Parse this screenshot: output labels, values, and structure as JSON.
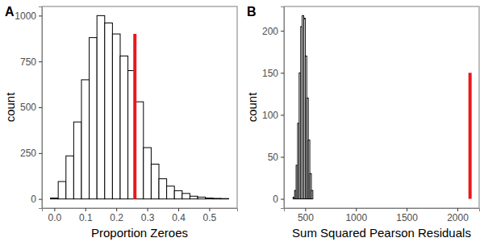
{
  "chart_data": [
    {
      "type": "histogram",
      "title": "A",
      "x_label": "Proportion Zeroes",
      "y_label": "count",
      "bins": [
        -0.0125,
        0.0125,
        0.0375,
        0.0625,
        0.0875,
        0.1125,
        0.1375,
        0.1625,
        0.1875,
        0.2125,
        0.2375,
        0.2625,
        0.2875,
        0.3125,
        0.3375,
        0.3625,
        0.3875,
        0.4125,
        0.4375,
        0.4625,
        0.4875,
        0.5125,
        0.5375,
        0.5625
      ],
      "counts": [
        5,
        95,
        235,
        420,
        650,
        880,
        1000,
        960,
        900,
        780,
        700,
        530,
        280,
        190,
        110,
        70,
        45,
        30,
        15,
        10,
        5,
        3,
        2
      ],
      "color": "#ffffff",
      "observed": {
        "x": 0.26,
        "y": 900,
        "color": "#e8191e"
      },
      "xlim": [
        -0.04,
        0.59
      ],
      "xticks": [
        {
          "value": 0,
          "label": "0.0"
        },
        0.1,
        0.2,
        0.3,
        0.4,
        0.5
      ],
      "ylim": [
        -50,
        1050
      ],
      "yticks": [
        0,
        250,
        500,
        750,
        1000
      ],
      "grid": false
    },
    {
      "type": "histogram",
      "title": "B",
      "x_label": "Sum Squared Pearson Residuals",
      "y_label": "count",
      "bins": [
        380,
        395,
        410,
        425,
        440,
        455,
        470,
        485,
        500,
        515,
        530,
        545,
        560,
        575
      ],
      "counts": [
        2,
        10,
        40,
        90,
        150,
        205,
        218,
        215,
        170,
        120,
        70,
        30,
        10
      ],
      "color": "#ffffff",
      "observed": {
        "x": 2125,
        "y": 150,
        "color": "#e8191e"
      },
      "xlim": [
        290,
        2215
      ],
      "xticks": [
        500,
        1000,
        1500,
        2000
      ],
      "ylim": [
        -11,
        229
      ],
      "yticks": [
        0,
        50,
        100,
        150,
        200
      ],
      "grid": false
    }
  ]
}
